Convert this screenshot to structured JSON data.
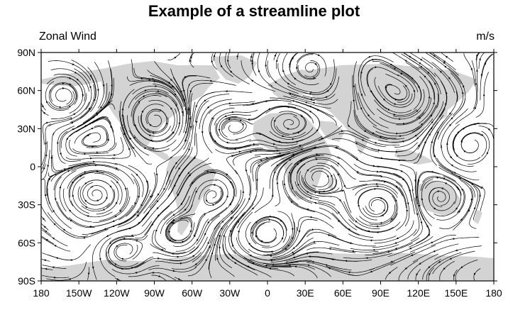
{
  "title": "Example of a streamline plot",
  "subtitle_left": "Zonal Wind",
  "subtitle_right": "m/s",
  "map": {
    "projection": "cylindrical-equidistant",
    "lon_range": [
      -180,
      180
    ],
    "lat_range": [
      -90,
      90
    ],
    "land_color": "#d3d3d3",
    "ocean_color": "#ffffff",
    "streamline_color": "#000000"
  },
  "x_ticks": [
    "180",
    "150W",
    "120W",
    "90W",
    "60W",
    "30W",
    "0",
    "30E",
    "60E",
    "90E",
    "120E",
    "150E",
    "180"
  ],
  "y_ticks": [
    "90N",
    "60N",
    "30N",
    "0",
    "30S",
    "60S",
    "90S"
  ]
}
